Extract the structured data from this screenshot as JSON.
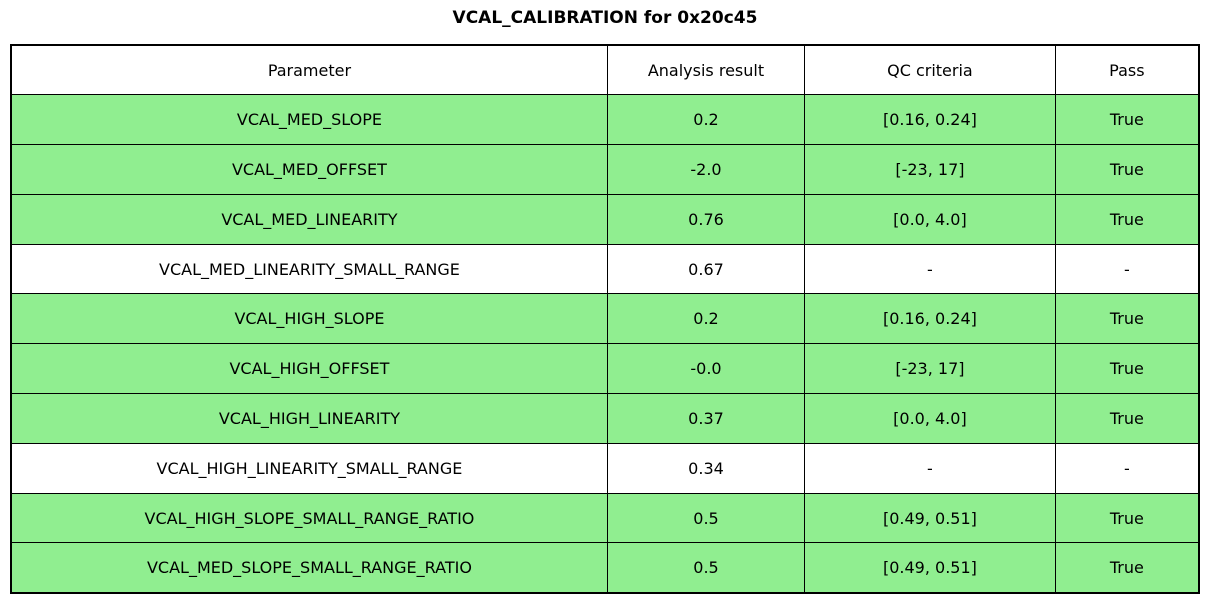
{
  "title": "VCAL_CALIBRATION for 0x20c45",
  "table": {
    "headers": [
      "Parameter",
      "Analysis result",
      "QC criteria",
      "Pass"
    ],
    "rows": [
      {
        "parameter": "VCAL_MED_SLOPE",
        "result": "0.2",
        "qc": "[0.16, 0.24]",
        "pass": "True",
        "highlight": true
      },
      {
        "parameter": "VCAL_MED_OFFSET",
        "result": "-2.0",
        "qc": "[-23, 17]",
        "pass": "True",
        "highlight": true
      },
      {
        "parameter": "VCAL_MED_LINEARITY",
        "result": "0.76",
        "qc": "[0.0, 4.0]",
        "pass": "True",
        "highlight": true
      },
      {
        "parameter": "VCAL_MED_LINEARITY_SMALL_RANGE",
        "result": "0.67",
        "qc": "-",
        "pass": "-",
        "highlight": false
      },
      {
        "parameter": "VCAL_HIGH_SLOPE",
        "result": "0.2",
        "qc": "[0.16, 0.24]",
        "pass": "True",
        "highlight": true
      },
      {
        "parameter": "VCAL_HIGH_OFFSET",
        "result": "-0.0",
        "qc": "[-23, 17]",
        "pass": "True",
        "highlight": true
      },
      {
        "parameter": "VCAL_HIGH_LINEARITY",
        "result": "0.37",
        "qc": "[0.0, 4.0]",
        "pass": "True",
        "highlight": true
      },
      {
        "parameter": "VCAL_HIGH_LINEARITY_SMALL_RANGE",
        "result": "0.34",
        "qc": "-",
        "pass": "-",
        "highlight": false
      },
      {
        "parameter": "VCAL_HIGH_SLOPE_SMALL_RANGE_RATIO",
        "result": "0.5",
        "qc": "[0.49, 0.51]",
        "pass": "True",
        "highlight": true
      },
      {
        "parameter": "VCAL_MED_SLOPE_SMALL_RANGE_RATIO",
        "result": "0.5",
        "qc": "[0.49, 0.51]",
        "pass": "True",
        "highlight": true
      }
    ]
  },
  "colors": {
    "pass_green": "#90EE90",
    "row_white": "#FFFFFF",
    "border": "#000000"
  },
  "chart_data": {
    "type": "table",
    "title": "VCAL_CALIBRATION for 0x20c45",
    "columns": [
      "Parameter",
      "Analysis result",
      "QC criteria",
      "Pass"
    ],
    "rows": [
      [
        "VCAL_MED_SLOPE",
        "0.2",
        "[0.16, 0.24]",
        "True"
      ],
      [
        "VCAL_MED_OFFSET",
        "-2.0",
        "[-23, 17]",
        "True"
      ],
      [
        "VCAL_MED_LINEARITY",
        "0.76",
        "[0.0, 4.0]",
        "True"
      ],
      [
        "VCAL_MED_LINEARITY_SMALL_RANGE",
        "0.67",
        "-",
        "-"
      ],
      [
        "VCAL_HIGH_SLOPE",
        "0.2",
        "[0.16, 0.24]",
        "True"
      ],
      [
        "VCAL_HIGH_OFFSET",
        "-0.0",
        "[-23, 17]",
        "True"
      ],
      [
        "VCAL_HIGH_LINEARITY",
        "0.37",
        "[0.0, 4.0]",
        "True"
      ],
      [
        "VCAL_HIGH_LINEARITY_SMALL_RANGE",
        "0.34",
        "-",
        "-"
      ],
      [
        "VCAL_HIGH_SLOPE_SMALL_RANGE_RATIO",
        "0.5",
        "[0.49, 0.51]",
        "True"
      ],
      [
        "VCAL_MED_SLOPE_SMALL_RANGE_RATIO",
        "0.5",
        "[0.49, 0.51]",
        "True"
      ]
    ],
    "row_highlight_color": "#90EE90",
    "highlighted_rows": [
      0,
      1,
      2,
      4,
      5,
      6,
      8,
      9
    ]
  }
}
